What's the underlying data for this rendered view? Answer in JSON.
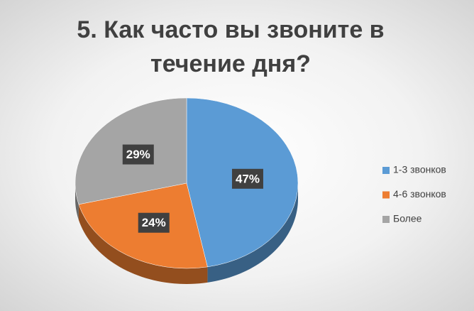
{
  "chart_data": {
    "type": "pie",
    "title": "5. Как часто вы звоните в течение дня?",
    "categories": [
      "1-3 звонков",
      "4-6 звонков",
      "Более"
    ],
    "values": [
      47,
      24,
      29
    ],
    "value_labels": [
      "47%",
      "24%",
      "29%"
    ],
    "colors": [
      "#5b9bd5",
      "#ed7d31",
      "#a5a5a5"
    ],
    "legend": "right"
  }
}
